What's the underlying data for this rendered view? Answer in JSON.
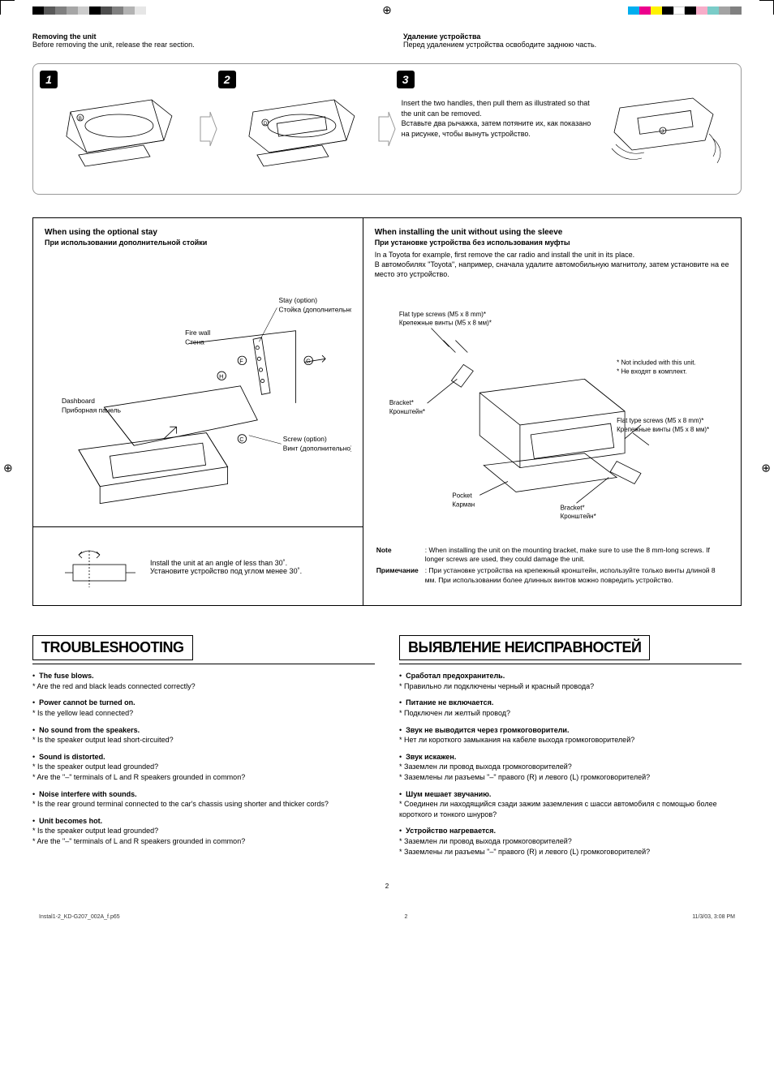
{
  "printmarks": {
    "left_bar_colors": [
      "#000000",
      "#595959",
      "#808080",
      "#a6a6a6",
      "#cccccc",
      "#000000",
      "#4d4d4d",
      "#808080",
      "#b3b3b3",
      "#e6e6e6"
    ],
    "right_bar_colors": [
      "#00aeef",
      "#ec008c",
      "#fff200",
      "#000000",
      "#ffffff",
      "#000000",
      "#f7adc9",
      "#7accc8",
      "#a3a3a3",
      "#808080"
    ]
  },
  "header": {
    "en_title": "Removing the unit",
    "en_body": "Before removing the unit, release the rear section.",
    "ru_title": "Удаление устройства",
    "ru_body": "Перед удалением устройства освободите заднюю часть."
  },
  "steps": {
    "n1": "1",
    "n2": "2",
    "n3": "3",
    "s3_en": "Insert the two handles, then pull them as illustrated so that the unit can be removed.",
    "s3_ru": "Вставьте два рычажка, затем потяните их, как показано на рисунке, чтобы вынуть устройство."
  },
  "install": {
    "left_title": "When using the optional stay",
    "left_title_ru": "При использовании дополнительной стойки",
    "labels": {
      "stay_en": "Stay (option)",
      "stay_ru": "Стойка (дополнительно)",
      "firewall_en": "Fire wall",
      "firewall_ru": "Стена",
      "dashboard_en": "Dashboard",
      "dashboard_ru": "Приборная панель",
      "screw_en": "Screw (option)",
      "screw_ru": "Винт (дополнительно)"
    },
    "angle_en": "Install the unit at an angle of less than 30˚.",
    "angle_ru": "Установите устройство под углом менее 30˚.",
    "right_title": "When installing the unit without using the sleeve",
    "right_title_ru": "При установке устройства без использования муфты",
    "right_body_en": "In a Toyota for example, first remove the car radio and install the unit in its place.",
    "right_body_ru": "В автомобилях \"Toyota\", например, сначала удалите автомобильную магнитолу, затем установите на ее место это устройство.",
    "rlabels": {
      "flat_en": "Flat type screws (M5 x 8 mm)*",
      "flat_ru": "Крепежные винты (M5 x 8 мм)*",
      "bracket_en": "Bracket*",
      "bracket_ru": "Кронштейн*",
      "pocket_en": "Pocket",
      "pocket_ru": "Карман",
      "notinc_en": "* Not included with this unit.",
      "notinc_ru": "* Не входят в комплект."
    },
    "note_label_en": "Note",
    "note_label_ru": "Примечание",
    "note_en": ": When installing the unit on the mounting bracket, make sure to use the 8 mm-long screws. If longer screws are used, they could damage the unit.",
    "note_ru": ": При установке устройства на крепежный кронштейн, используйте только винты длиной 8 мм. При использовании более длинных винтов можно повредить устройство."
  },
  "troubleshooting": {
    "en_title": "TROUBLESHOOTING",
    "ru_title": "ВЫЯВЛЕНИЕ НЕИСПРАВНОСТЕЙ",
    "en": [
      {
        "h": "The fuse blows.",
        "q": [
          "Are the red and black leads connected correctly?"
        ]
      },
      {
        "h": "Power cannot be turned on.",
        "q": [
          "Is the yellow lead connected?"
        ]
      },
      {
        "h": "No sound from the speakers.",
        "q": [
          "Is the speaker output lead short-circuited?"
        ]
      },
      {
        "h": "Sound is distorted.",
        "q": [
          "Is the speaker output lead grounded?",
          "Are the \"–\" terminals of L and R speakers grounded in common?"
        ]
      },
      {
        "h": "Noise interfere with sounds.",
        "q": [
          "Is the rear ground terminal connected to the car's chassis using shorter and thicker cords?"
        ]
      },
      {
        "h": "Unit becomes hot.",
        "q": [
          "Is the speaker output lead grounded?",
          "Are the \"–\" terminals of L and R speakers grounded in common?"
        ]
      }
    ],
    "ru": [
      {
        "h": "Сработал предохранитель.",
        "q": [
          "Правильно ли подключены черный и красный провода?"
        ]
      },
      {
        "h": "Питание не включается.",
        "q": [
          "Подключен ли желтый провод?"
        ]
      },
      {
        "h": "Звук не выводится через громкоговорители.",
        "q": [
          "Нет ли короткого замыкания на кабеле выхода громкоговорителей?"
        ]
      },
      {
        "h": "Звук искажен.",
        "q": [
          "Заземлен ли провод выхода громкоговорителей?",
          "Заземлены ли разъемы \"–\" правого (R) и левого (L) громкоговорителей?"
        ]
      },
      {
        "h": "Шум мешает звучанию.",
        "q": [
          "Соединен ли находящийся сзади зажим заземления с шасси автомобиля с помощью более короткого и тонкого шнуров?"
        ]
      },
      {
        "h": "Устройство нагревается.",
        "q": [
          "Заземлен ли провод выхода громкоговорителей?",
          "Заземлены ли разъемы \"–\" правого (R) и левого (L) громкоговорителей?"
        ]
      }
    ]
  },
  "footer": {
    "page": "2",
    "file": "Instal1-2_KD-G207_002A_f.p65",
    "pg": "2",
    "ts": "11/3/03, 3:08 PM"
  }
}
